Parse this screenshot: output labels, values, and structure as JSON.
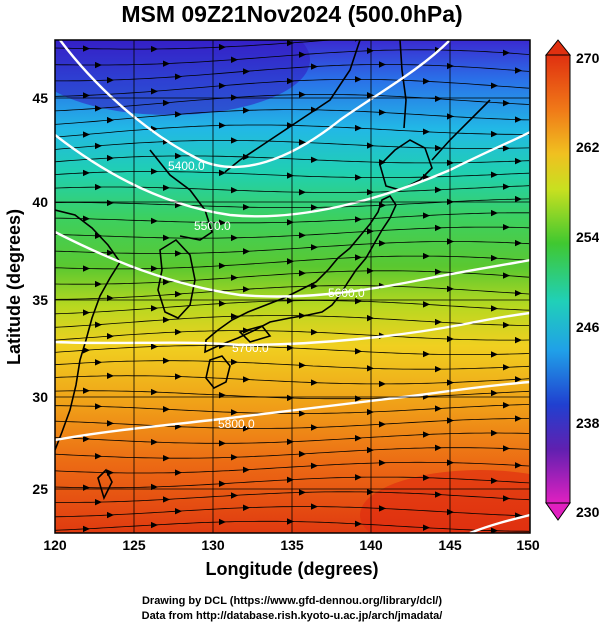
{
  "title": "MSM 09Z21Nov2024 (500.0hPa)",
  "x_axis": {
    "label": "Longitude (degrees)",
    "ticks": [
      "120",
      "125",
      "130",
      "135",
      "140",
      "145",
      "150"
    ]
  },
  "y_axis": {
    "label": "Latitude  (degrees)",
    "ticks": [
      "25",
      "30",
      "35",
      "40",
      "45"
    ]
  },
  "colorbar": {
    "ticks": [
      "270",
      "262",
      "254",
      "246",
      "238",
      "230"
    ]
  },
  "contour_labels": [
    "5400.0",
    "5500.0",
    "5600.0",
    "5700.0",
    "5800.0"
  ],
  "credits": {
    "line1": "Drawing by DCL (https://www.gfd-dennou.org/library/dcl/)",
    "line2": "Data from http://database.rish.kyoto-u.ac.jp/arch/jmadata/"
  },
  "map_data": {
    "projection": "equirectangular",
    "lon_range": [
      120,
      150
    ],
    "lat_range": [
      22.4,
      47.6
    ],
    "shaded_field": "temperature (K)",
    "colorbar_range": [
      230,
      270
    ],
    "contour_field": "geopotential height (m)",
    "contour_levels": [
      5400,
      5500,
      5600,
      5700,
      5800
    ],
    "vectors": "streamlines, mostly westerly, flowing toward the east",
    "colors": {
      "cold": "#3030c0",
      "cool": "#20c8e0",
      "mid": "#30c030",
      "warm": "#f0c020",
      "hot": "#e03010",
      "contour": "#ffffff"
    }
  }
}
